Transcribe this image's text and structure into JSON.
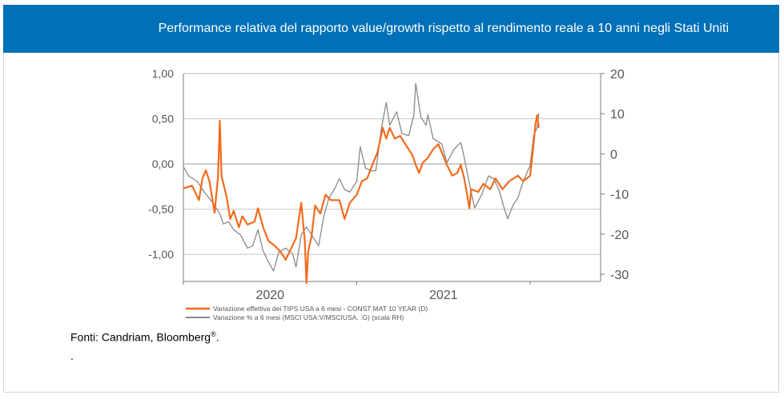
{
  "title": "Performance relativa del rapporto value/growth rispetto al rendimento reale a 10 anni negli Stati Uniti",
  "source": {
    "text": "Fonti: Candriam, Bloomberg",
    "mark": "®",
    "end": "."
  },
  "note": ".",
  "colors": {
    "header": "#0070b8",
    "orange": "#f26b1d",
    "gray": "#8a8a8a"
  },
  "chart_data": {
    "type": "line",
    "x_ticks": [
      "2020",
      "2021"
    ],
    "y_left": {
      "range": [
        -1.3,
        1.0
      ],
      "ticks": [
        "1,00",
        "0,50",
        "0,00",
        "-0,50",
        "-1,00"
      ],
      "tick_values": [
        1.0,
        0.5,
        0.0,
        -0.5,
        -1.0
      ]
    },
    "y_right": {
      "range": [
        -31.8,
        20
      ],
      "ticks": [
        "20",
        "10",
        "0",
        "-10",
        "-20",
        "-30"
      ],
      "tick_values": [
        20,
        10,
        0,
        -10,
        -20,
        -30
      ]
    },
    "grid": true,
    "legend_position": "bottom",
    "series": [
      {
        "name": "Variazione  effettiva dei TIPS USA a 6 mesi - CONST MAT  10 YEAR (D)",
        "axis": "left",
        "color": "#f26b1d",
        "x": [
          2020.0,
          2020.05,
          2020.09,
          2020.11,
          2020.13,
          2020.15,
          2020.18,
          2020.2,
          2020.21,
          2020.22,
          2020.25,
          2020.27,
          2020.29,
          2020.32,
          2020.34,
          2020.37,
          2020.41,
          2020.43,
          2020.46,
          2020.49,
          2020.53,
          2020.56,
          2020.59,
          2020.62,
          2020.65,
          2020.68,
          2020.7,
          2020.71,
          2020.72,
          2020.74,
          2020.76,
          2020.79,
          2020.82,
          2020.85,
          2020.9,
          2020.93,
          2020.96,
          2021.0,
          2021.03,
          2021.06,
          2021.09,
          2021.12,
          2021.15,
          2021.17,
          2021.19,
          2021.22,
          2021.25,
          2021.29,
          2021.32,
          2021.34,
          2021.36,
          2021.38,
          2021.41,
          2021.44,
          2021.47,
          2021.49,
          2021.52,
          2021.55,
          2021.58,
          2021.6,
          2021.62,
          2021.65,
          2021.66,
          2021.7,
          2021.73,
          2021.77,
          2021.8,
          2021.84,
          2021.88,
          2021.93,
          2021.96,
          2022.0,
          2022.02,
          2022.03,
          2022.04,
          2022.05
        ],
        "y": [
          -0.27,
          -0.24,
          -0.4,
          -0.16,
          -0.07,
          -0.19,
          -0.54,
          -0.13,
          0.48,
          -0.13,
          -0.37,
          -0.61,
          -0.52,
          -0.7,
          -0.58,
          -0.67,
          -0.64,
          -0.49,
          -0.7,
          -0.85,
          -0.91,
          -0.97,
          -1.06,
          -0.94,
          -0.82,
          -0.43,
          -0.85,
          -1.32,
          -0.97,
          -0.79,
          -0.46,
          -0.55,
          -0.34,
          -0.4,
          -0.4,
          -0.61,
          -0.43,
          -0.34,
          -0.19,
          -0.16,
          -0.01,
          0.13,
          0.4,
          0.28,
          0.4,
          0.28,
          0.31,
          0.19,
          0.1,
          -0.01,
          -0.1,
          0.01,
          0.07,
          0.16,
          0.22,
          0.13,
          -0.01,
          -0.13,
          -0.1,
          -0.01,
          -0.16,
          -0.49,
          -0.28,
          -0.31,
          -0.22,
          -0.28,
          -0.16,
          -0.28,
          -0.19,
          -0.13,
          -0.19,
          -0.13,
          0.22,
          0.43,
          0.54,
          0.4
        ]
      },
      {
        "name": "Variazione  % a 6 mesi (MSCI USA:V/MSCIUSA. :G) (scala RH)",
        "axis": "right",
        "color": "#8a8a8a",
        "x": [
          2020.0,
          2020.03,
          2020.08,
          2020.12,
          2020.17,
          2020.21,
          2020.23,
          2020.26,
          2020.29,
          2020.33,
          2020.37,
          2020.4,
          2020.43,
          2020.46,
          2020.49,
          2020.52,
          2020.55,
          2020.59,
          2020.63,
          2020.65,
          2020.68,
          2020.71,
          2020.74,
          2020.78,
          2020.81,
          2020.84,
          2020.87,
          2020.9,
          2020.93,
          2020.96,
          2021.0,
          2021.02,
          2021.05,
          2021.08,
          2021.11,
          2021.14,
          2021.17,
          2021.19,
          2021.23,
          2021.26,
          2021.3,
          2021.33,
          2021.34,
          2021.37,
          2021.4,
          2021.41,
          2021.44,
          2021.49,
          2021.52,
          2021.56,
          2021.6,
          2021.62,
          2021.65,
          2021.68,
          2021.72,
          2021.76,
          2021.79,
          2021.82,
          2021.85,
          2021.87,
          2021.9,
          2021.93,
          2021.96,
          2022.0,
          2022.02,
          2022.04,
          2022.05
        ],
        "y": [
          -3.2,
          -5.5,
          -6.9,
          -9.5,
          -12.2,
          -14.9,
          -17.5,
          -16.9,
          -18.9,
          -20.2,
          -23.5,
          -22.9,
          -18.9,
          -24.2,
          -26.9,
          -29.2,
          -24.5,
          -23.5,
          -24.9,
          -28.2,
          -20.2,
          -18.2,
          -20.2,
          -22.9,
          -15.5,
          -10.9,
          -8.9,
          -6.2,
          -8.9,
          -9.5,
          -6.9,
          1.8,
          -3.5,
          -4.2,
          -4.2,
          5.8,
          12.8,
          7.1,
          10.5,
          5.1,
          4.5,
          9.8,
          17.5,
          9.1,
          7.1,
          9.8,
          3.8,
          2.5,
          -2.2,
          1.1,
          2.8,
          -0.9,
          -7.5,
          -13.5,
          -10.2,
          -5.5,
          -6.2,
          -8.9,
          -13.5,
          -16.2,
          -12.9,
          -10.9,
          -6.9,
          -2.9,
          4.5,
          6.5,
          10.1
        ]
      }
    ]
  }
}
